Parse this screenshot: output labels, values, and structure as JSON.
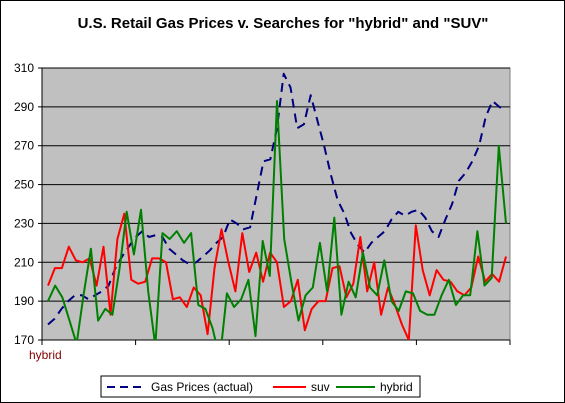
{
  "chart_data": {
    "type": "line",
    "title": "U.S. Retail Gas Prices v. Searches for \"hybrid\" and \"SUV\"",
    "xlabel": "",
    "ylabel": "",
    "x_tick_label": "hybrid",
    "ylim": [
      170,
      310
    ],
    "yticks": [
      170,
      190,
      210,
      230,
      250,
      270,
      290,
      310
    ],
    "grid": "horizontal",
    "plot_background": "#c0c0c0",
    "legend_position": "bottom",
    "series": [
      {
        "name": "Gas Prices (actual)",
        "color": "#000080",
        "dash": "dashed",
        "values": [
          178,
          181,
          186,
          190,
          193,
          193,
          191,
          193,
          195,
          198,
          207,
          213,
          218,
          223,
          226,
          223,
          224,
          223,
          217,
          214,
          211,
          209,
          210,
          213,
          216,
          220,
          223,
          232,
          230,
          227,
          228,
          245,
          262,
          263,
          279,
          307,
          300,
          279,
          281,
          296,
          283,
          270,
          255,
          242,
          235,
          225,
          219,
          215,
          220,
          223,
          226,
          232,
          236,
          234,
          236,
          237,
          233,
          226,
          223,
          232,
          240,
          252,
          256,
          262,
          270,
          285,
          293,
          290,
          288
        ]
      },
      {
        "name": "suv",
        "color": "#ff0000",
        "dash": "solid",
        "values": [
          198,
          207,
          207,
          218,
          211,
          210,
          212,
          198,
          218,
          183,
          222,
          235,
          201,
          199,
          200,
          212,
          212,
          210,
          191,
          192,
          187,
          197,
          193,
          173,
          207,
          227,
          210,
          195,
          225,
          205,
          215,
          200,
          215,
          210,
          187,
          190,
          201,
          175,
          186,
          190,
          190,
          207,
          208,
          192,
          199,
          223,
          195,
          210,
          183,
          197,
          188,
          178,
          170,
          229,
          206,
          193,
          206,
          201,
          200,
          195,
          193,
          197,
          213,
          200,
          204,
          200,
          213
        ]
      },
      {
        "name": "hybrid",
        "color": "#008000",
        "dash": "solid",
        "values": [
          190,
          198,
          192,
          180,
          168,
          194,
          217,
          180,
          186,
          183,
          207,
          236,
          214,
          237,
          195,
          167,
          225,
          222,
          226,
          220,
          225,
          188,
          186,
          176,
          160,
          194,
          187,
          191,
          201,
          172,
          221,
          203,
          293,
          222,
          200,
          180,
          193,
          197,
          220,
          195,
          233,
          183,
          200,
          192,
          215,
          197,
          193,
          211,
          190,
          185,
          195,
          194,
          185,
          183,
          183,
          193,
          201,
          188,
          193,
          193,
          226,
          198,
          202,
          270,
          230
        ]
      }
    ]
  }
}
